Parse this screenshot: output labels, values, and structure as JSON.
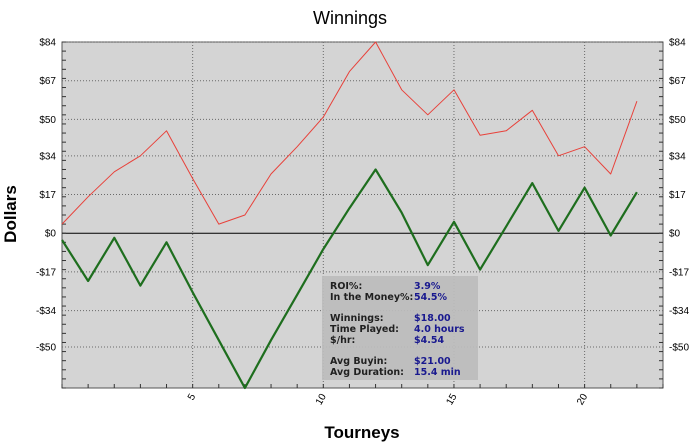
{
  "chart_data": {
    "type": "line",
    "title": "Winnings",
    "xlabel": "Tourneys",
    "ylabel": "Dollars",
    "xlim": [
      0,
      23
    ],
    "ylim": [
      -68,
      84
    ],
    "x_ticks": [
      5,
      10,
      15,
      20
    ],
    "y_ticks": [
      84,
      67,
      50,
      34,
      17,
      0,
      -17,
      -34,
      -50
    ],
    "y_tick_labels": [
      "$84",
      "$67",
      "$50",
      "$34",
      "$17",
      "$0",
      "-$17",
      "-$34",
      "-$50"
    ],
    "grid": true,
    "legend": "none",
    "series": [
      {
        "color": "#e8413a",
        "x": [
          0,
          1,
          2,
          3,
          4,
          5,
          6,
          7,
          8,
          9,
          10,
          11,
          12,
          13,
          14,
          15,
          16,
          17,
          18,
          19,
          20,
          21,
          22
        ],
        "values": [
          4,
          16,
          27,
          34,
          45,
          24,
          4,
          8,
          26,
          38,
          51,
          71,
          84,
          63,
          52,
          63,
          43,
          45,
          54,
          34,
          38,
          26,
          58
        ]
      },
      {
        "color": "#1e6e1e",
        "x": [
          0,
          1,
          2,
          3,
          4,
          5,
          6,
          7,
          8,
          9,
          10,
          11,
          12,
          13,
          14,
          15,
          16,
          17,
          18,
          19,
          20,
          21,
          22
        ],
        "values": [
          -3,
          -21,
          -2,
          -23,
          -4,
          -26,
          -47,
          -68,
          -47,
          -27,
          -7,
          11,
          28,
          9,
          -14,
          5,
          -16,
          3,
          22,
          1,
          20,
          -1,
          18
        ]
      }
    ]
  },
  "stats": [
    {
      "label": "ROI%:",
      "value": "3.9%"
    },
    {
      "label": "In the Money%:",
      "value": "54.5%"
    },
    {
      "label": "",
      "value": ""
    },
    {
      "label": "Winnings:",
      "value": "$18.00"
    },
    {
      "label": "Time Played:",
      "value": "4.0 hours"
    },
    {
      "label": "$/hr:",
      "value": "$4.54"
    },
    {
      "label": "",
      "value": ""
    },
    {
      "label": "Avg Buyin:",
      "value": "$21.00"
    },
    {
      "label": "Avg Duration:",
      "value": "15.4 min"
    }
  ]
}
